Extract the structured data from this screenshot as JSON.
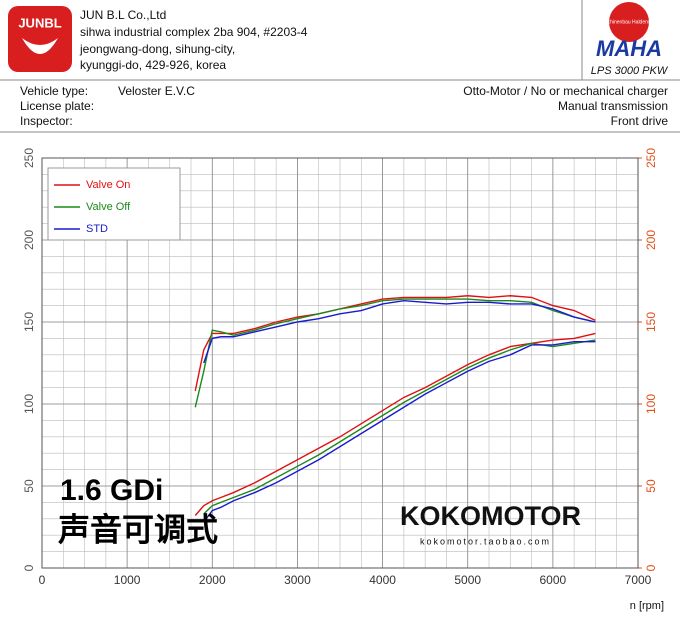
{
  "header": {
    "logo": "JUNBL",
    "company": [
      "JUN B.L Co.,Ltd",
      "sihwa industrial complex 2ba 904, #2203-4",
      "jeongwang-dong, sihung-city,",
      "kyunggi-do, 429-926, korea"
    ],
    "maha_ring": "Maschinenbau Haldenwang",
    "maha": "MAHA",
    "model": "LPS 3000 PKW"
  },
  "info": {
    "labels": [
      "Vehicle type:",
      "License plate:",
      "Inspector:"
    ],
    "vehicle": "Veloster E.V.C",
    "right": [
      "Otto-Motor / No or mechanical charger",
      "Manual transmission",
      "Front drive"
    ]
  },
  "chart_data": {
    "type": "line",
    "x_label": "n [rpm]",
    "xlim": [
      0,
      7000
    ],
    "xticks": [
      0,
      1000,
      2000,
      3000,
      4000,
      5000,
      6000,
      7000
    ],
    "ylim": [
      0,
      250
    ],
    "yticks": [
      0,
      50,
      100,
      150,
      200,
      250
    ],
    "y2lim": [
      0,
      250
    ],
    "y2ticks": [
      0,
      50,
      100,
      150,
      200,
      250
    ],
    "y2color": "#e0501a",
    "grid": true,
    "minor_grid": {
      "x": 250,
      "y": 10
    },
    "legend": "upper left",
    "x": [
      1800,
      1900,
      2000,
      2100,
      2250,
      2500,
      2750,
      3000,
      3250,
      3500,
      3750,
      4000,
      4250,
      4500,
      4750,
      5000,
      5250,
      5500,
      5750,
      6000,
      6250,
      6500
    ],
    "series": [
      {
        "name": "Valve On",
        "color": "#e01010",
        "upper": [
          108,
          133,
          143,
          143,
          143,
          146,
          150,
          153,
          155,
          158,
          161,
          164,
          165,
          165,
          165,
          166,
          165,
          166,
          165,
          160,
          157,
          151
        ],
        "lower": [
          32,
          38,
          41,
          43,
          46,
          52,
          59,
          66,
          73,
          80,
          88,
          96,
          104,
          110,
          117,
          124,
          130,
          135,
          137,
          139,
          140,
          143
        ]
      },
      {
        "name": "Valve Off",
        "color": "#1a8a1a",
        "upper": [
          98,
          120,
          145,
          144,
          142,
          145,
          149,
          152,
          155,
          158,
          160,
          163,
          164,
          164,
          164,
          164,
          163,
          163,
          162,
          157,
          153,
          150
        ],
        "lower": [
          null,
          33,
          38,
          40,
          43,
          48,
          55,
          62,
          69,
          77,
          85,
          93,
          101,
          108,
          115,
          122,
          128,
          133,
          137,
          135,
          137,
          139
        ]
      },
      {
        "name": "STD",
        "color": "#1a1ad0",
        "upper": [
          null,
          125,
          140,
          141,
          141,
          144,
          147,
          150,
          152,
          155,
          157,
          161,
          163,
          162,
          161,
          162,
          162,
          161,
          161,
          158,
          153,
          150
        ],
        "lower": [
          null,
          28,
          35,
          37,
          41,
          46,
          52,
          59,
          66,
          74,
          82,
          90,
          98,
          106,
          113,
          120,
          126,
          130,
          136,
          136,
          138,
          138
        ]
      }
    ],
    "annotations": [
      "1.6 GDi",
      "声音可调式",
      "KOKOMOTOR",
      "kokomotor.taobao.com"
    ]
  }
}
